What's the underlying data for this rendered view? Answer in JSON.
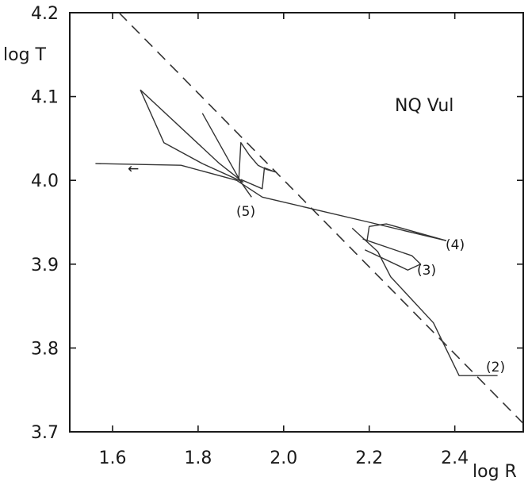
{
  "chart_data": {
    "type": "line",
    "title": "NQ Vul",
    "xlabel": "log R",
    "ylabel": "log T",
    "xlim": [
      1.5,
      2.56
    ],
    "ylim": [
      3.7,
      4.2
    ],
    "x_ticks": [
      1.6,
      1.8,
      2.0,
      2.2,
      2.4
    ],
    "x_tick_labels": [
      "1.6",
      "1.8",
      "2.0",
      "2.2",
      "2.4"
    ],
    "y_ticks": [
      3.7,
      3.8,
      3.9,
      4.0,
      4.1,
      4.2
    ],
    "y_tick_labels": [
      "3.7",
      "3.8",
      "3.9",
      "4.0",
      "4.1",
      "4.2"
    ],
    "grid": false,
    "annotations": [
      "(2)",
      "(3)",
      "(4)",
      "(5)"
    ],
    "arrow_label": "←",
    "series": [
      {
        "style": "dashed",
        "x": [
          1.615,
          2.56
        ],
        "y": [
          4.2,
          3.71
        ]
      },
      {
        "style": "solid",
        "x": [
          1.56,
          1.76,
          1.89,
          1.95,
          2.2,
          2.38
        ],
        "y": [
          4.02,
          4.018,
          4.0,
          3.98,
          3.95,
          3.928
        ]
      },
      {
        "style": "solid",
        "x": [
          1.665,
          1.85,
          1.905,
          1.81,
          1.72,
          1.665
        ],
        "y": [
          4.108,
          4.02,
          3.998,
          4.02,
          4.045,
          4.108
        ]
      },
      {
        "style": "solid",
        "x": [
          1.81,
          1.9,
          1.925
        ],
        "y": [
          4.08,
          3.998,
          3.98
        ]
      },
      {
        "style": "solid",
        "x": [
          1.895,
          1.9,
          1.92,
          1.94,
          1.96,
          1.98,
          1.955,
          1.95,
          1.9
        ],
        "y": [
          4.001,
          4.045,
          4.03,
          4.018,
          4.013,
          4.01,
          4.015,
          3.99,
          4.001
        ]
      },
      {
        "style": "solid",
        "x": [
          2.195,
          2.2,
          2.24,
          2.38
        ],
        "y": [
          3.928,
          3.945,
          3.948,
          3.928
        ]
      },
      {
        "style": "solid",
        "x": [
          2.185,
          2.3,
          2.32,
          2.29,
          2.19
        ],
        "y": [
          3.93,
          3.91,
          3.9,
          3.893,
          3.917
        ]
      },
      {
        "style": "solid",
        "x": [
          2.16,
          2.22,
          2.25,
          2.35,
          2.41,
          2.5
        ],
        "y": [
          3.943,
          3.915,
          3.885,
          3.83,
          3.767,
          3.767
        ]
      }
    ]
  }
}
